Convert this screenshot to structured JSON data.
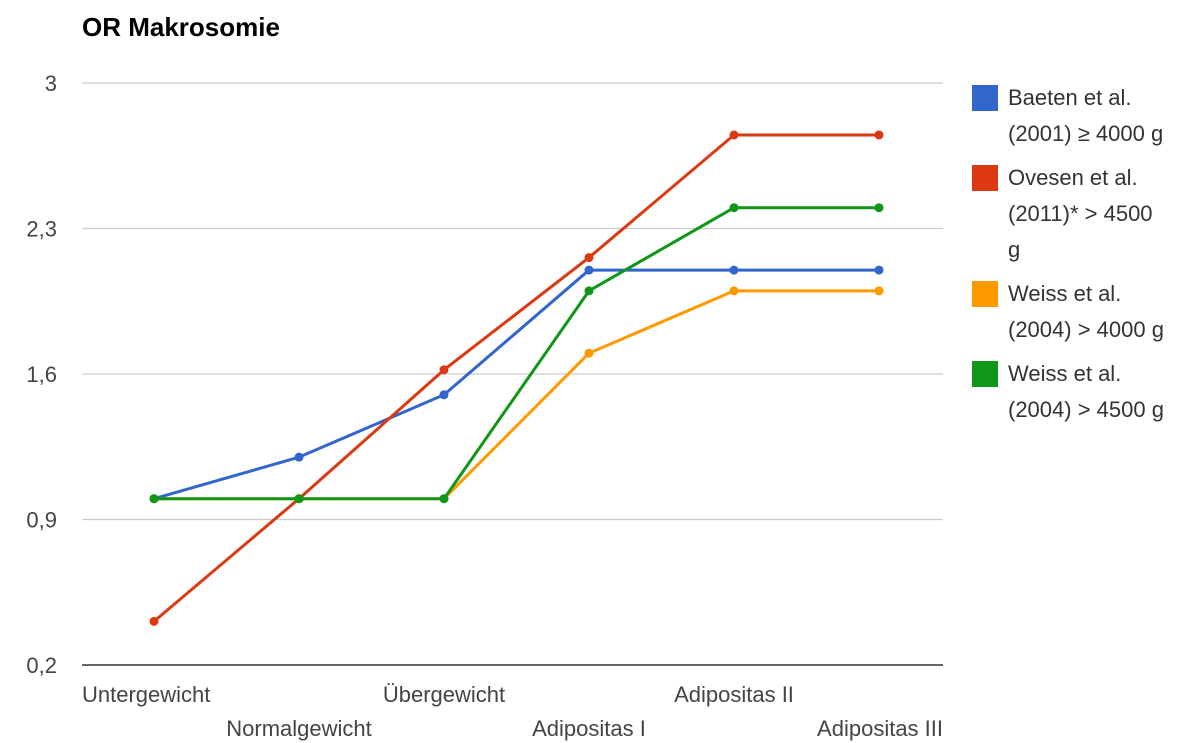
{
  "chart_data": {
    "type": "line",
    "title": "OR Makrosomie",
    "xlabel": "",
    "ylabel": "",
    "categories": [
      "Untergewicht",
      "Normalgewicht",
      "Übergewicht",
      "Adipositas I",
      "Adipositas II",
      "Adipositas III"
    ],
    "y_ticks": [
      "0,2",
      "0,9",
      "1,6",
      "2,3",
      "3"
    ],
    "ylim": [
      0.2,
      3.0
    ],
    "grid": true,
    "legend_position": "right",
    "series": [
      {
        "name": "Baeten et al. (2001) ≥ 4000 g",
        "legend_lines": [
          "Baeten et al.",
          "(2001) ≥ 4000 g"
        ],
        "color": "#3366cc",
        "values": [
          1.0,
          1.2,
          1.5,
          2.1,
          2.1,
          2.1
        ]
      },
      {
        "name": "Ovesen et al. (2011)* > 4500 g",
        "legend_lines": [
          "Ovesen et al.",
          "(2011)* > 4500",
          "g"
        ],
        "color": "#dc3912",
        "values": [
          0.41,
          1.0,
          1.62,
          2.16,
          2.75,
          2.75
        ]
      },
      {
        "name": "Weiss et al. (2004) > 4000 g",
        "legend_lines": [
          "Weiss et al.",
          "(2004) > 4000 g"
        ],
        "color": "#ff9900",
        "values": [
          1.0,
          1.0,
          1.0,
          1.7,
          2.0,
          2.0
        ]
      },
      {
        "name": "Weiss et al. (2004) > 4500 g",
        "legend_lines": [
          "Weiss et al.",
          "(2004) > 4500 g"
        ],
        "color": "#109618",
        "values": [
          1.0,
          1.0,
          1.0,
          2.0,
          2.4,
          2.4
        ]
      }
    ]
  }
}
